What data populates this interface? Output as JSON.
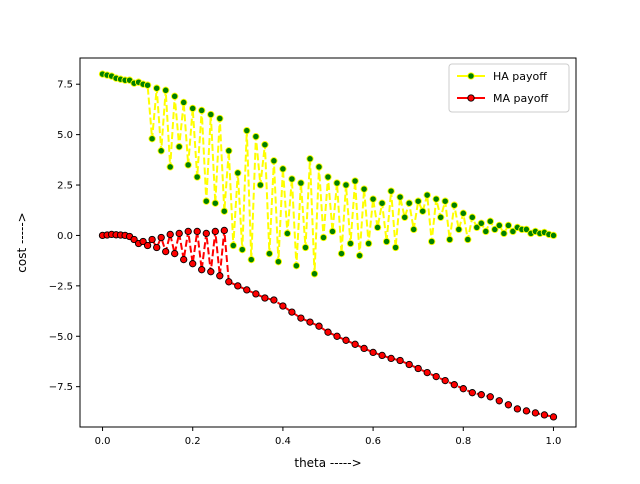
{
  "chart_data": {
    "type": "line",
    "title": "",
    "xlabel": "theta ----->",
    "ylabel": "cost ----->",
    "xlim": [
      -0.05,
      1.05
    ],
    "ylim": [
      -9.5,
      8.8
    ],
    "grid": false,
    "legend_position": "top-right",
    "x_ticks": [
      {
        "value": 0.0,
        "label": "0.0"
      },
      {
        "value": 0.2,
        "label": "0.2"
      },
      {
        "value": 0.4,
        "label": "0.4"
      },
      {
        "value": 0.6,
        "label": "0.6"
      },
      {
        "value": 0.8,
        "label": "0.8"
      },
      {
        "value": 1.0,
        "label": "1.0"
      }
    ],
    "y_ticks": [
      {
        "value": -7.5,
        "label": "−7.5"
      },
      {
        "value": -5.0,
        "label": "−5.0"
      },
      {
        "value": -2.5,
        "label": "−2.5"
      },
      {
        "value": 0.0,
        "label": "0.0"
      },
      {
        "value": 2.5,
        "label": "2.5"
      },
      {
        "value": 5.0,
        "label": "5.0"
      },
      {
        "value": 7.5,
        "label": "7.5"
      }
    ],
    "series": [
      {
        "name": "HA payoff",
        "line_color": "#ffff00",
        "marker_color": "#008000",
        "marker_edge": "#ffff00",
        "line_style": "dashed",
        "x": [
          0.0,
          0.01,
          0.02,
          0.03,
          0.04,
          0.05,
          0.06,
          0.07,
          0.08,
          0.09,
          0.1,
          0.11,
          0.12,
          0.13,
          0.14,
          0.15,
          0.16,
          0.17,
          0.18,
          0.19,
          0.2,
          0.21,
          0.22,
          0.23,
          0.24,
          0.25,
          0.26,
          0.27,
          0.28,
          0.29,
          0.3,
          0.31,
          0.32,
          0.33,
          0.34,
          0.35,
          0.36,
          0.37,
          0.38,
          0.39,
          0.4,
          0.41,
          0.42,
          0.43,
          0.44,
          0.45,
          0.46,
          0.47,
          0.48,
          0.49,
          0.5,
          0.51,
          0.52,
          0.53,
          0.54,
          0.55,
          0.56,
          0.57,
          0.58,
          0.59,
          0.6,
          0.61,
          0.62,
          0.63,
          0.64,
          0.65,
          0.66,
          0.67,
          0.68,
          0.69,
          0.7,
          0.71,
          0.72,
          0.73,
          0.74,
          0.75,
          0.76,
          0.77,
          0.78,
          0.79,
          0.8,
          0.81,
          0.82,
          0.83,
          0.84,
          0.85,
          0.86,
          0.87,
          0.88,
          0.89,
          0.9,
          0.91,
          0.92,
          0.93,
          0.94,
          0.95,
          0.96,
          0.97,
          0.98,
          0.99,
          1.0
        ],
        "y": [
          8.0,
          7.95,
          7.9,
          7.8,
          7.75,
          7.7,
          7.7,
          7.55,
          7.6,
          7.5,
          7.45,
          4.8,
          7.3,
          4.2,
          7.2,
          3.4,
          6.9,
          4.4,
          6.6,
          3.5,
          6.3,
          2.9,
          6.2,
          1.7,
          6.0,
          1.6,
          5.8,
          1.2,
          4.2,
          -0.5,
          3.1,
          -0.7,
          5.2,
          -1.2,
          4.9,
          2.5,
          4.5,
          -0.9,
          3.7,
          -1.3,
          3.3,
          0.1,
          2.8,
          -1.5,
          2.6,
          -0.6,
          3.8,
          -1.9,
          3.4,
          -0.1,
          2.9,
          0.2,
          2.6,
          -0.9,
          2.5,
          -0.4,
          2.7,
          -1.0,
          2.3,
          -0.4,
          1.8,
          0.4,
          1.6,
          -0.3,
          2.2,
          -0.6,
          1.9,
          0.9,
          1.6,
          0.3,
          1.7,
          1.2,
          2.0,
          -0.3,
          1.8,
          0.9,
          1.7,
          -0.2,
          1.5,
          0.3,
          1.1,
          -0.2,
          0.9,
          0.4,
          0.6,
          0.2,
          0.7,
          0.3,
          0.5,
          0.1,
          0.5,
          0.2,
          0.4,
          0.3,
          0.3,
          0.1,
          0.2,
          0.1,
          0.15,
          0.05,
          0.0
        ]
      },
      {
        "name": "MA payoff",
        "line_color": "#ff0000",
        "marker_color": "#ff0000",
        "marker_edge": "#000000",
        "line_style": "dashed",
        "x": [
          0.0,
          0.01,
          0.02,
          0.03,
          0.04,
          0.05,
          0.06,
          0.07,
          0.08,
          0.09,
          0.1,
          0.11,
          0.12,
          0.13,
          0.14,
          0.15,
          0.16,
          0.17,
          0.18,
          0.19,
          0.2,
          0.21,
          0.22,
          0.23,
          0.24,
          0.25,
          0.26,
          0.27,
          0.28,
          0.3,
          0.32,
          0.34,
          0.36,
          0.38,
          0.4,
          0.42,
          0.44,
          0.46,
          0.48,
          0.5,
          0.52,
          0.54,
          0.56,
          0.58,
          0.6,
          0.62,
          0.64,
          0.66,
          0.68,
          0.7,
          0.72,
          0.74,
          0.76,
          0.78,
          0.8,
          0.82,
          0.84,
          0.86,
          0.88,
          0.9,
          0.92,
          0.94,
          0.96,
          0.98,
          1.0
        ],
        "y": [
          0.0,
          0.02,
          0.05,
          0.03,
          0.02,
          0.0,
          -0.05,
          -0.2,
          -0.4,
          -0.3,
          -0.5,
          -0.2,
          -0.6,
          -0.1,
          -0.8,
          0.05,
          -0.9,
          0.1,
          -1.2,
          0.2,
          -1.4,
          0.2,
          -1.7,
          0.1,
          -1.8,
          0.2,
          -2.0,
          0.25,
          -2.3,
          -2.5,
          -2.7,
          -2.9,
          -3.1,
          -3.2,
          -3.5,
          -3.8,
          -4.1,
          -4.3,
          -4.5,
          -4.8,
          -5.0,
          -5.2,
          -5.4,
          -5.6,
          -5.8,
          -5.95,
          -6.1,
          -6.2,
          -6.4,
          -6.6,
          -6.8,
          -7.0,
          -7.2,
          -7.4,
          -7.6,
          -7.8,
          -7.9,
          -8.0,
          -8.2,
          -8.4,
          -8.6,
          -8.7,
          -8.8,
          -8.9,
          -9.0
        ]
      }
    ]
  }
}
